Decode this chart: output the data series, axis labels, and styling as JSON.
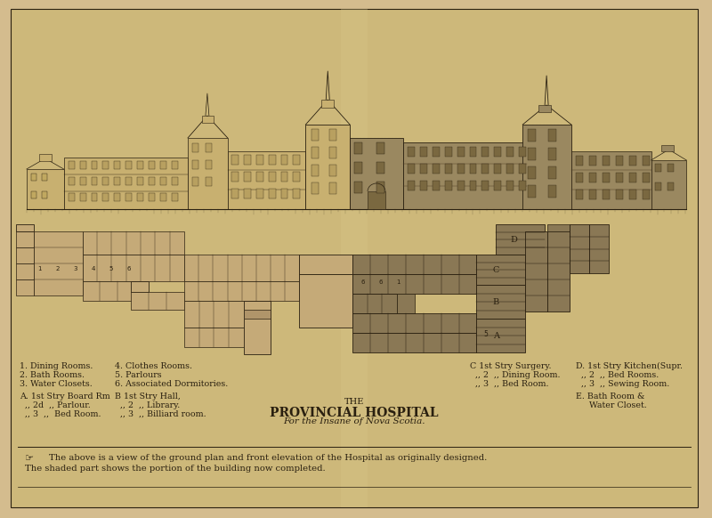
{
  "bg_color": "#d4bc8e",
  "paper_color": "#cdb87a",
  "fold_color": "#c0a86a",
  "ink": "#2a2010",
  "light_ink": "#4a3820",
  "shaded_fill": "#9a8860",
  "unshaded_fill": "#c8b070",
  "figsize": [
    8.0,
    5.82
  ],
  "dpi": 100,
  "title_line1": "THE",
  "title_line2": "PROVINCIAL HOSPITAL",
  "title_line3": "For the Insane of Nova Scotia.",
  "caption1": "The above is a view of the ground plan and front elevation of the Hospital as originally designed.",
  "caption2": "The shaded part shows the portion of the building now completed.",
  "legend1": [
    "1. Dining Rooms.",
    "2. Bath Rooms.",
    "3. Water Closets."
  ],
  "legend2": [
    "4. Clothes Rooms.",
    "5. Parlours",
    "6. Associated Dormitories."
  ],
  "legendA": [
    "A. 1st Stry Board Rm",
    "  ,, 2d  ,, Parlour.",
    "  ,, 3  ,,  Bed Room."
  ],
  "legendB": [
    "B 1st Stry Hall,",
    "  ,, 2  ,, Library.",
    "  ,, 3  ,, Billiard room."
  ],
  "legendC": [
    "C 1st Stry Surgery.",
    "  ,, 2  ,, Dining Room.",
    "  ,, 3  ,, Bed Room."
  ],
  "legendD": [
    "D. 1st Stry Kitchen(Supr.",
    "  ,, 2  ,, Bed Rooms.",
    "  ,, 3  ,, Sewing Room."
  ],
  "legendE": [
    "E. Bath Room &",
    "     Water Closet."
  ]
}
